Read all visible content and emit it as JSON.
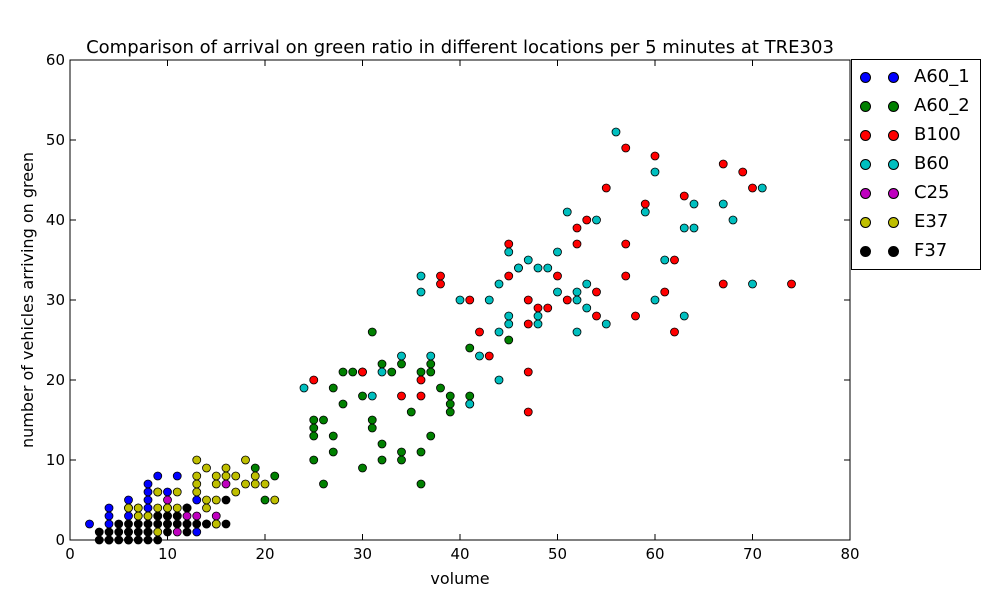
{
  "chart_data": {
    "type": "scatter",
    "title": "Comparison of arrival on green ratio in different locations per 5 minutes at TRE303",
    "xlabel": "volume",
    "ylabel": "number of vehicles arriving on green",
    "xlim": [
      0,
      80
    ],
    "ylim": [
      0,
      60
    ],
    "xticks": [
      0,
      10,
      20,
      30,
      40,
      50,
      60,
      70,
      80
    ],
    "yticks": [
      0,
      10,
      20,
      30,
      40,
      50,
      60
    ],
    "grid": false,
    "legend_position": "outside-right-top",
    "series": [
      {
        "name": "A60_1",
        "color": "#0000ff",
        "points": [
          [
            2,
            2
          ],
          [
            4,
            2
          ],
          [
            4,
            3
          ],
          [
            4,
            4
          ],
          [
            6,
            3
          ],
          [
            6,
            4
          ],
          [
            6,
            5
          ],
          [
            7,
            3
          ],
          [
            7,
            4
          ],
          [
            8,
            3
          ],
          [
            8,
            4
          ],
          [
            8,
            5
          ],
          [
            8,
            6
          ],
          [
            8,
            7
          ],
          [
            9,
            6
          ],
          [
            9,
            8
          ],
          [
            10,
            4
          ],
          [
            10,
            6
          ],
          [
            11,
            8
          ],
          [
            12,
            4
          ],
          [
            13,
            1
          ],
          [
            13,
            5
          ]
        ]
      },
      {
        "name": "A60_2",
        "color": "#008000",
        "points": [
          [
            19,
            9
          ],
          [
            20,
            5
          ],
          [
            21,
            8
          ],
          [
            25,
            10
          ],
          [
            25,
            13
          ],
          [
            25,
            14
          ],
          [
            25,
            15
          ],
          [
            26,
            7
          ],
          [
            26,
            15
          ],
          [
            27,
            11
          ],
          [
            27,
            13
          ],
          [
            27,
            19
          ],
          [
            28,
            17
          ],
          [
            28,
            21
          ],
          [
            29,
            21
          ],
          [
            30,
            9
          ],
          [
            30,
            18
          ],
          [
            30,
            21
          ],
          [
            31,
            14
          ],
          [
            31,
            15
          ],
          [
            31,
            26
          ],
          [
            32,
            10
          ],
          [
            32,
            12
          ],
          [
            32,
            22
          ],
          [
            33,
            21
          ],
          [
            34,
            10
          ],
          [
            34,
            11
          ],
          [
            34,
            22
          ],
          [
            35,
            16
          ],
          [
            36,
            7
          ],
          [
            36,
            11
          ],
          [
            36,
            21
          ],
          [
            37,
            13
          ],
          [
            37,
            21
          ],
          [
            37,
            22
          ],
          [
            38,
            19
          ],
          [
            39,
            16
          ],
          [
            39,
            17
          ],
          [
            39,
            18
          ],
          [
            41,
            17
          ],
          [
            41,
            18
          ],
          [
            41,
            24
          ],
          [
            45,
            25
          ]
        ]
      },
      {
        "name": "B100",
        "color": "#ff0000",
        "points": [
          [
            25,
            20
          ],
          [
            30,
            21
          ],
          [
            34,
            18
          ],
          [
            36,
            18
          ],
          [
            36,
            20
          ],
          [
            38,
            32
          ],
          [
            38,
            33
          ],
          [
            41,
            30
          ],
          [
            42,
            26
          ],
          [
            43,
            23
          ],
          [
            45,
            33
          ],
          [
            45,
            37
          ],
          [
            46,
            34
          ],
          [
            47,
            16
          ],
          [
            47,
            21
          ],
          [
            47,
            27
          ],
          [
            47,
            30
          ],
          [
            48,
            29
          ],
          [
            49,
            29
          ],
          [
            50,
            33
          ],
          [
            51,
            30
          ],
          [
            52,
            37
          ],
          [
            52,
            39
          ],
          [
            53,
            40
          ],
          [
            54,
            28
          ],
          [
            54,
            31
          ],
          [
            55,
            44
          ],
          [
            57,
            33
          ],
          [
            57,
            37
          ],
          [
            57,
            49
          ],
          [
            58,
            28
          ],
          [
            59,
            42
          ],
          [
            60,
            48
          ],
          [
            61,
            31
          ],
          [
            62,
            26
          ],
          [
            62,
            35
          ],
          [
            63,
            43
          ],
          [
            67,
            32
          ],
          [
            67,
            47
          ],
          [
            69,
            46
          ],
          [
            70,
            44
          ],
          [
            74,
            32
          ]
        ]
      },
      {
        "name": "B60",
        "color": "#00bfbf",
        "points": [
          [
            24,
            19
          ],
          [
            31,
            18
          ],
          [
            32,
            21
          ],
          [
            34,
            23
          ],
          [
            36,
            31
          ],
          [
            36,
            33
          ],
          [
            37,
            23
          ],
          [
            40,
            30
          ],
          [
            41,
            17
          ],
          [
            42,
            23
          ],
          [
            43,
            30
          ],
          [
            44,
            20
          ],
          [
            44,
            26
          ],
          [
            44,
            32
          ],
          [
            45,
            27
          ],
          [
            45,
            28
          ],
          [
            45,
            36
          ],
          [
            46,
            34
          ],
          [
            47,
            35
          ],
          [
            48,
            27
          ],
          [
            48,
            28
          ],
          [
            48,
            34
          ],
          [
            49,
            34
          ],
          [
            50,
            31
          ],
          [
            50,
            36
          ],
          [
            51,
            41
          ],
          [
            52,
            26
          ],
          [
            52,
            30
          ],
          [
            52,
            31
          ],
          [
            53,
            29
          ],
          [
            53,
            32
          ],
          [
            54,
            40
          ],
          [
            55,
            27
          ],
          [
            56,
            51
          ],
          [
            59,
            41
          ],
          [
            60,
            30
          ],
          [
            60,
            46
          ],
          [
            61,
            35
          ],
          [
            63,
            28
          ],
          [
            63,
            39
          ],
          [
            64,
            39
          ],
          [
            64,
            42
          ],
          [
            67,
            42
          ],
          [
            68,
            40
          ],
          [
            70,
            32
          ],
          [
            71,
            44
          ]
        ]
      },
      {
        "name": "C25",
        "color": "#bf00bf",
        "points": [
          [
            4,
            0
          ],
          [
            6,
            0
          ],
          [
            8,
            1
          ],
          [
            9,
            3
          ],
          [
            10,
            2
          ],
          [
            10,
            5
          ],
          [
            11,
            1
          ],
          [
            12,
            3
          ],
          [
            13,
            3
          ],
          [
            14,
            2
          ],
          [
            15,
            2
          ],
          [
            15,
            3
          ],
          [
            16,
            7
          ]
        ]
      },
      {
        "name": "E37",
        "color": "#bfbf00",
        "points": [
          [
            6,
            1
          ],
          [
            6,
            4
          ],
          [
            7,
            3
          ],
          [
            7,
            4
          ],
          [
            8,
            1
          ],
          [
            8,
            3
          ],
          [
            9,
            1
          ],
          [
            9,
            4
          ],
          [
            9,
            6
          ],
          [
            10,
            3
          ],
          [
            10,
            4
          ],
          [
            11,
            3
          ],
          [
            11,
            4
          ],
          [
            11,
            6
          ],
          [
            12,
            2
          ],
          [
            12,
            4
          ],
          [
            13,
            6
          ],
          [
            13,
            7
          ],
          [
            13,
            8
          ],
          [
            13,
            10
          ],
          [
            14,
            4
          ],
          [
            14,
            5
          ],
          [
            14,
            9
          ],
          [
            15,
            2
          ],
          [
            15,
            5
          ],
          [
            15,
            7
          ],
          [
            15,
            8
          ],
          [
            16,
            8
          ],
          [
            16,
            9
          ],
          [
            17,
            6
          ],
          [
            17,
            8
          ],
          [
            18,
            7
          ],
          [
            18,
            10
          ],
          [
            19,
            7
          ],
          [
            19,
            8
          ],
          [
            20,
            7
          ],
          [
            21,
            5
          ]
        ]
      },
      {
        "name": "F37",
        "color": "#000000",
        "points": [
          [
            3,
            0
          ],
          [
            3,
            1
          ],
          [
            4,
            0
          ],
          [
            4,
            1
          ],
          [
            5,
            0
          ],
          [
            5,
            1
          ],
          [
            5,
            2
          ],
          [
            6,
            0
          ],
          [
            6,
            1
          ],
          [
            6,
            2
          ],
          [
            7,
            0
          ],
          [
            7,
            1
          ],
          [
            7,
            2
          ],
          [
            8,
            0
          ],
          [
            8,
            1
          ],
          [
            8,
            2
          ],
          [
            9,
            0
          ],
          [
            9,
            2
          ],
          [
            9,
            3
          ],
          [
            10,
            1
          ],
          [
            10,
            2
          ],
          [
            10,
            3
          ],
          [
            11,
            2
          ],
          [
            11,
            3
          ],
          [
            12,
            1
          ],
          [
            12,
            2
          ],
          [
            12,
            4
          ],
          [
            13,
            2
          ],
          [
            14,
            2
          ],
          [
            16,
            2
          ],
          [
            16,
            5
          ]
        ]
      }
    ]
  }
}
